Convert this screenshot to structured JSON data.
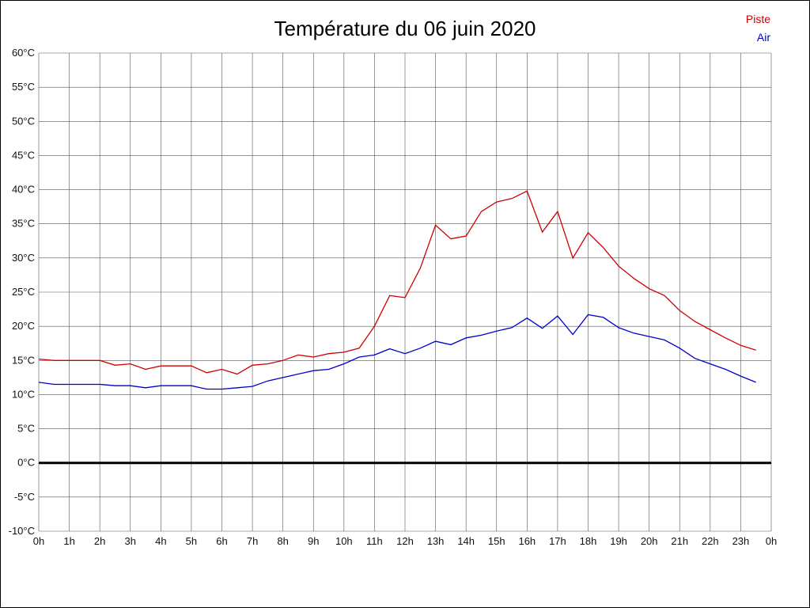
{
  "chart_data": {
    "type": "line",
    "title": "Température du 06 juin 2020",
    "x_range": [
      0,
      24
    ],
    "y_range": [
      -10,
      60
    ],
    "y_tick_step": 5,
    "y_tick_suffix": "°C",
    "grid": true,
    "zero_line": true,
    "legend_position": "top-right",
    "x_tick_labels": [
      "0h",
      "1h",
      "2h",
      "3h",
      "4h",
      "5h",
      "6h",
      "7h",
      "8h",
      "9h",
      "10h",
      "11h",
      "12h",
      "13h",
      "14h",
      "15h",
      "16h",
      "17h",
      "18h",
      "19h",
      "20h",
      "21h",
      "22h",
      "23h",
      "0h"
    ],
    "x": [
      0,
      0.5,
      1,
      1.5,
      2,
      2.5,
      3,
      3.5,
      4,
      4.5,
      5,
      5.5,
      6,
      6.5,
      7,
      7.5,
      8,
      8.5,
      9,
      9.5,
      10,
      10.5,
      11,
      11.5,
      12,
      12.5,
      13,
      13.5,
      14,
      14.5,
      15,
      15.5,
      16,
      16.5,
      17,
      17.5,
      18,
      18.5,
      19,
      19.5,
      20,
      20.5,
      21,
      21.5,
      22,
      22.5,
      23,
      23.5
    ],
    "series": [
      {
        "name": "Piste",
        "color": "#cc0000",
        "values": [
          15.2,
          15,
          15,
          15,
          15,
          14.3,
          14.5,
          13.7,
          14.2,
          14.2,
          14.2,
          13.2,
          13.7,
          13,
          14.3,
          14.5,
          15,
          15.8,
          15.5,
          16,
          16.2,
          16.8,
          20,
          24.5,
          24.2,
          28.5,
          34.8,
          32.8,
          33.2,
          36.8,
          38.2,
          38.7,
          39.8,
          33.8,
          36.8,
          30,
          33.7,
          31.5,
          28.8,
          27,
          25.5,
          24.5,
          22.3,
          20.7,
          19.5,
          18.3,
          17.2,
          16.5
        ]
      },
      {
        "name": "Air",
        "color": "#0000cc",
        "values": [
          11.8,
          11.5,
          11.5,
          11.5,
          11.5,
          11.3,
          11.3,
          11,
          11.3,
          11.3,
          11.3,
          10.8,
          10.8,
          11,
          11.2,
          12,
          12.5,
          13,
          13.5,
          13.7,
          14.5,
          15.5,
          15.8,
          16.7,
          16,
          16.8,
          17.8,
          17.3,
          18.3,
          18.7,
          19.3,
          19.8,
          21.2,
          19.7,
          21.5,
          18.8,
          21.7,
          21.3,
          19.8,
          19,
          18.5,
          18,
          16.8,
          15.3,
          14.5,
          13.7,
          12.7,
          11.8
        ]
      }
    ]
  }
}
